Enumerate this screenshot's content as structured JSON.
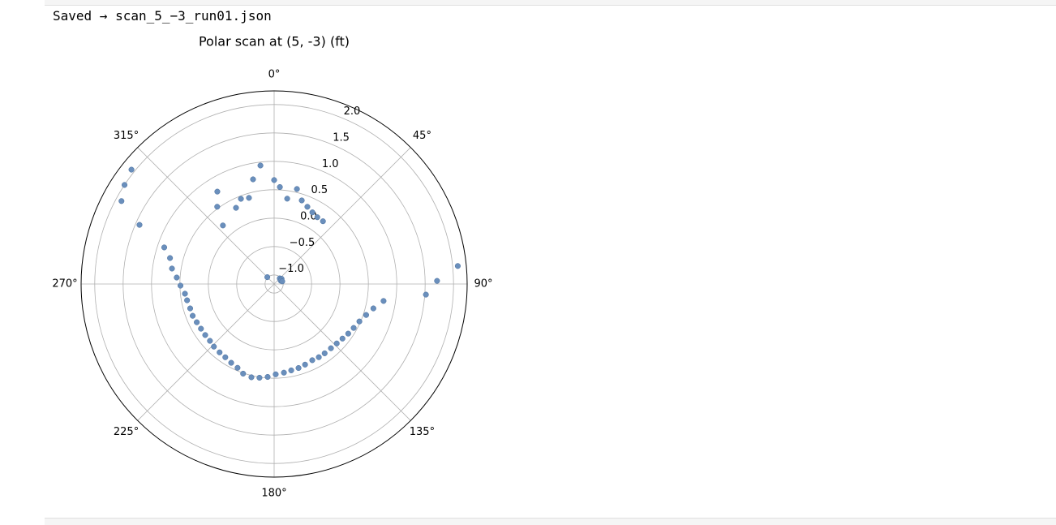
{
  "output_text": "Saved → scan_5_−3_run01.json",
  "chart_data": {
    "type": "scatter",
    "projection": "polar",
    "title": "Polar scan at (5, -3) (ft)",
    "theta_zero": "N",
    "theta_direction": "clockwise",
    "grid": true,
    "color": "#6a8fbc",
    "theta": [
      0,
      3.4,
      8.7,
      13.5,
      18.3,
      23.3,
      28.1,
      32.9,
      37.9,
      45,
      55,
      63,
      72,
      84.4,
      88.9,
      94.0,
      98.8,
      103.8,
      108.6,
      113.7,
      118.9,
      123.8,
      128.6,
      133.5,
      138.5,
      143.9,
      148.6,
      153.4,
      159.0,
      163.8,
      168.8,
      173.7,
      179.0,
      184.0,
      188.9,
      193.7,
      199.1,
      203.6,
      208.6,
      213.7,
      218.6,
      223.9,
      228.5,
      233.5,
      238.6,
      243.7,
      248.7,
      253.8,
      259.4,
      263.8,
      269.0,
      273.8,
      278.6,
      284.0,
      288.4,
      293.7,
      298.5,
      303.5,
      308.7,
      315,
      318.8,
      323.6,
      328.4,
      333.4,
      338.7,
      343.7,
      348.6,
      353.4
    ],
    "r": [
      0.67,
      0.55,
      0.36,
      0.56,
      0.39,
      0.32,
      0.27,
      0.24,
      0.24,
      -1.02,
      -1.0,
      -1.03,
      -1.01,
      2.09,
      1.71,
      1.52,
      0.79,
      0.64,
      0.55,
      0.48,
      0.44,
      0.41,
      0.38,
      0.36,
      0.35,
      0.35,
      0.35,
      0.34,
      0.36,
      0.38,
      0.39,
      0.41,
      0.43,
      0.48,
      0.51,
      0.53,
      0.51,
      0.45,
      0.42,
      0.39,
      0.38,
      0.37,
      0.35,
      0.35,
      0.35,
      0.36,
      0.38,
      0.38,
      0.4,
      0.42,
      0.49,
      0.56,
      0.66,
      0.73,
      0.88,
      1.43,
      1.9,
      2.0,
      2.06,
      -0.99,
      0.21,
      0.53,
      0.75,
      0.34,
      0.45,
      0.42,
      0.72,
      0.94
    ],
    "rlim": [
      -1.16,
      2.24
    ],
    "rticks": [
      {
        "value": -1.0,
        "label": "−1.0"
      },
      {
        "value": -0.5,
        "label": "−0.5"
      },
      {
        "value": 0,
        "label": "0.0"
      },
      {
        "value": 0.5,
        "label": "0.5"
      },
      {
        "value": 1,
        "label": "1.0"
      },
      {
        "value": 1.5,
        "label": "1.5"
      },
      {
        "value": 2,
        "label": "2.0"
      }
    ],
    "thetaticks": [
      {
        "value": 0,
        "label": "0°"
      },
      {
        "value": 45,
        "label": "45°"
      },
      {
        "value": 90,
        "label": "90°"
      },
      {
        "value": 135,
        "label": "135°"
      },
      {
        "value": 180,
        "label": "180°"
      },
      {
        "value": 225,
        "label": "225°"
      },
      {
        "value": 270,
        "label": "270°"
      },
      {
        "value": 315,
        "label": "315°"
      }
    ]
  }
}
